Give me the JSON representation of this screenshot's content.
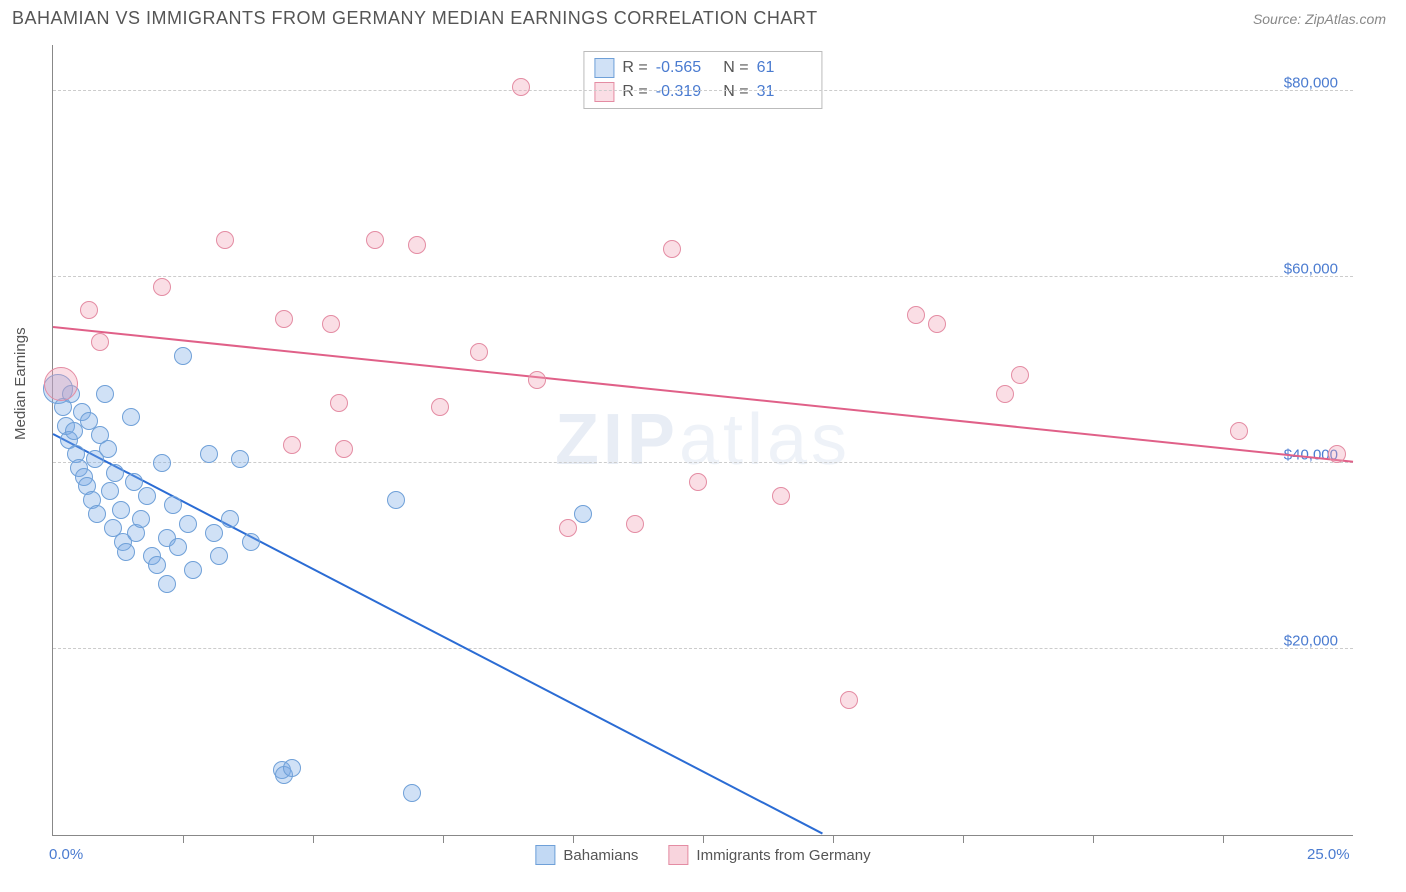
{
  "header": {
    "title": "BAHAMIAN VS IMMIGRANTS FROM GERMANY MEDIAN EARNINGS CORRELATION CHART",
    "source": "Source: ZipAtlas.com"
  },
  "chart": {
    "type": "scatter",
    "watermark_zip": "ZIP",
    "watermark_atlas": "atlas",
    "ylabel": "Median Earnings",
    "xlim": [
      0,
      25
    ],
    "ylim": [
      0,
      85000
    ],
    "xticks": [
      {
        "pos": 0.0,
        "label": "0.0%"
      },
      {
        "pos": 25.0,
        "label": "25.0%"
      }
    ],
    "xgrid": [
      2.5,
      5.0,
      7.5,
      10.0,
      12.5,
      15.0,
      17.5,
      20.0,
      22.5
    ],
    "yticks": [
      {
        "pos": 20000,
        "label": "$20,000"
      },
      {
        "pos": 40000,
        "label": "$40,000"
      },
      {
        "pos": 60000,
        "label": "$60,000"
      },
      {
        "pos": 80000,
        "label": "$80,000"
      }
    ],
    "background_color": "#ffffff",
    "grid_color": "#cccccc",
    "axis_color": "#888888",
    "series": [
      {
        "name": "Bahamians",
        "fill": "rgba(120,170,230,0.35)",
        "stroke": "#6fa0d8",
        "trend_color": "#2b6cd4",
        "marker_r": 8,
        "R": "-0.565",
        "N": "61",
        "trend": {
          "x1": 0.0,
          "y1": 43000,
          "x2": 14.8,
          "y2": 0
        },
        "points": [
          [
            0.1,
            48000,
            14
          ],
          [
            0.2,
            46000,
            8
          ],
          [
            0.25,
            44000,
            8
          ],
          [
            0.3,
            42500,
            8
          ],
          [
            0.35,
            47500,
            8
          ],
          [
            0.4,
            43500,
            8
          ],
          [
            0.45,
            41000,
            8
          ],
          [
            0.5,
            39500,
            8
          ],
          [
            0.55,
            45500,
            8
          ],
          [
            0.6,
            38500,
            8
          ],
          [
            0.65,
            37500,
            8
          ],
          [
            0.7,
            44500,
            8
          ],
          [
            0.75,
            36000,
            8
          ],
          [
            0.8,
            40500,
            8
          ],
          [
            0.85,
            34500,
            8
          ],
          [
            0.9,
            43000,
            8
          ],
          [
            1.0,
            47500,
            8
          ],
          [
            1.05,
            41500,
            8
          ],
          [
            1.1,
            37000,
            8
          ],
          [
            1.15,
            33000,
            8
          ],
          [
            1.2,
            39000,
            8
          ],
          [
            1.3,
            35000,
            8
          ],
          [
            1.35,
            31500,
            8
          ],
          [
            1.4,
            30500,
            8
          ],
          [
            1.5,
            45000,
            8
          ],
          [
            1.55,
            38000,
            8
          ],
          [
            1.6,
            32500,
            8
          ],
          [
            1.7,
            34000,
            8
          ],
          [
            1.8,
            36500,
            8
          ],
          [
            1.9,
            30000,
            8
          ],
          [
            2.0,
            29000,
            8
          ],
          [
            2.1,
            40000,
            8
          ],
          [
            2.2,
            32000,
            8
          ],
          [
            2.3,
            35500,
            8
          ],
          [
            2.4,
            31000,
            8
          ],
          [
            2.5,
            51500,
            8
          ],
          [
            2.6,
            33500,
            8
          ],
          [
            2.7,
            28500,
            8
          ],
          [
            3.0,
            41000,
            8
          ],
          [
            3.1,
            32500,
            8
          ],
          [
            3.2,
            30000,
            8
          ],
          [
            3.4,
            34000,
            8
          ],
          [
            3.6,
            40500,
            8
          ],
          [
            3.8,
            31500,
            8
          ],
          [
            2.2,
            27000,
            8
          ],
          [
            4.4,
            7000,
            8
          ],
          [
            4.45,
            6500,
            8
          ],
          [
            4.6,
            7200,
            8
          ],
          [
            6.6,
            36000,
            8
          ],
          [
            6.9,
            4500,
            8
          ],
          [
            10.2,
            34500,
            8
          ]
        ]
      },
      {
        "name": "Immigrants from Germany",
        "fill": "rgba(240,160,180,0.35)",
        "stroke": "#e48ca3",
        "trend_color": "#e06088",
        "marker_r": 8,
        "R": "-0.319",
        "N": "31",
        "trend": {
          "x1": 0.0,
          "y1": 54500,
          "x2": 25.0,
          "y2": 40000
        },
        "points": [
          [
            0.15,
            48500,
            16
          ],
          [
            0.7,
            56500,
            8
          ],
          [
            0.9,
            53000,
            8
          ],
          [
            2.1,
            59000,
            8
          ],
          [
            3.3,
            64000,
            8
          ],
          [
            4.45,
            55500,
            8
          ],
          [
            4.6,
            42000,
            8
          ],
          [
            5.35,
            55000,
            8
          ],
          [
            5.5,
            46500,
            8
          ],
          [
            5.6,
            41500,
            8
          ],
          [
            6.2,
            64000,
            8
          ],
          [
            7.0,
            63500,
            8
          ],
          [
            7.45,
            46000,
            8
          ],
          [
            8.2,
            52000,
            8
          ],
          [
            9.0,
            80500,
            8
          ],
          [
            9.3,
            49000,
            8
          ],
          [
            9.9,
            33000,
            8
          ],
          [
            11.2,
            33500,
            8
          ],
          [
            11.9,
            63000,
            8
          ],
          [
            12.4,
            38000,
            8
          ],
          [
            14.0,
            36500,
            8
          ],
          [
            15.3,
            14500,
            8
          ],
          [
            16.6,
            56000,
            8
          ],
          [
            17.0,
            55000,
            8
          ],
          [
            18.3,
            47500,
            8
          ],
          [
            18.6,
            49500,
            8
          ],
          [
            22.8,
            43500,
            8
          ],
          [
            24.7,
            41000,
            8
          ]
        ]
      }
    ],
    "legend": {
      "items": [
        {
          "label": "Bahamians",
          "fill": "rgba(120,170,230,0.45)",
          "stroke": "#6fa0d8"
        },
        {
          "label": "Immigrants from Germany",
          "fill": "rgba(240,160,180,0.45)",
          "stroke": "#e48ca3"
        }
      ]
    }
  }
}
